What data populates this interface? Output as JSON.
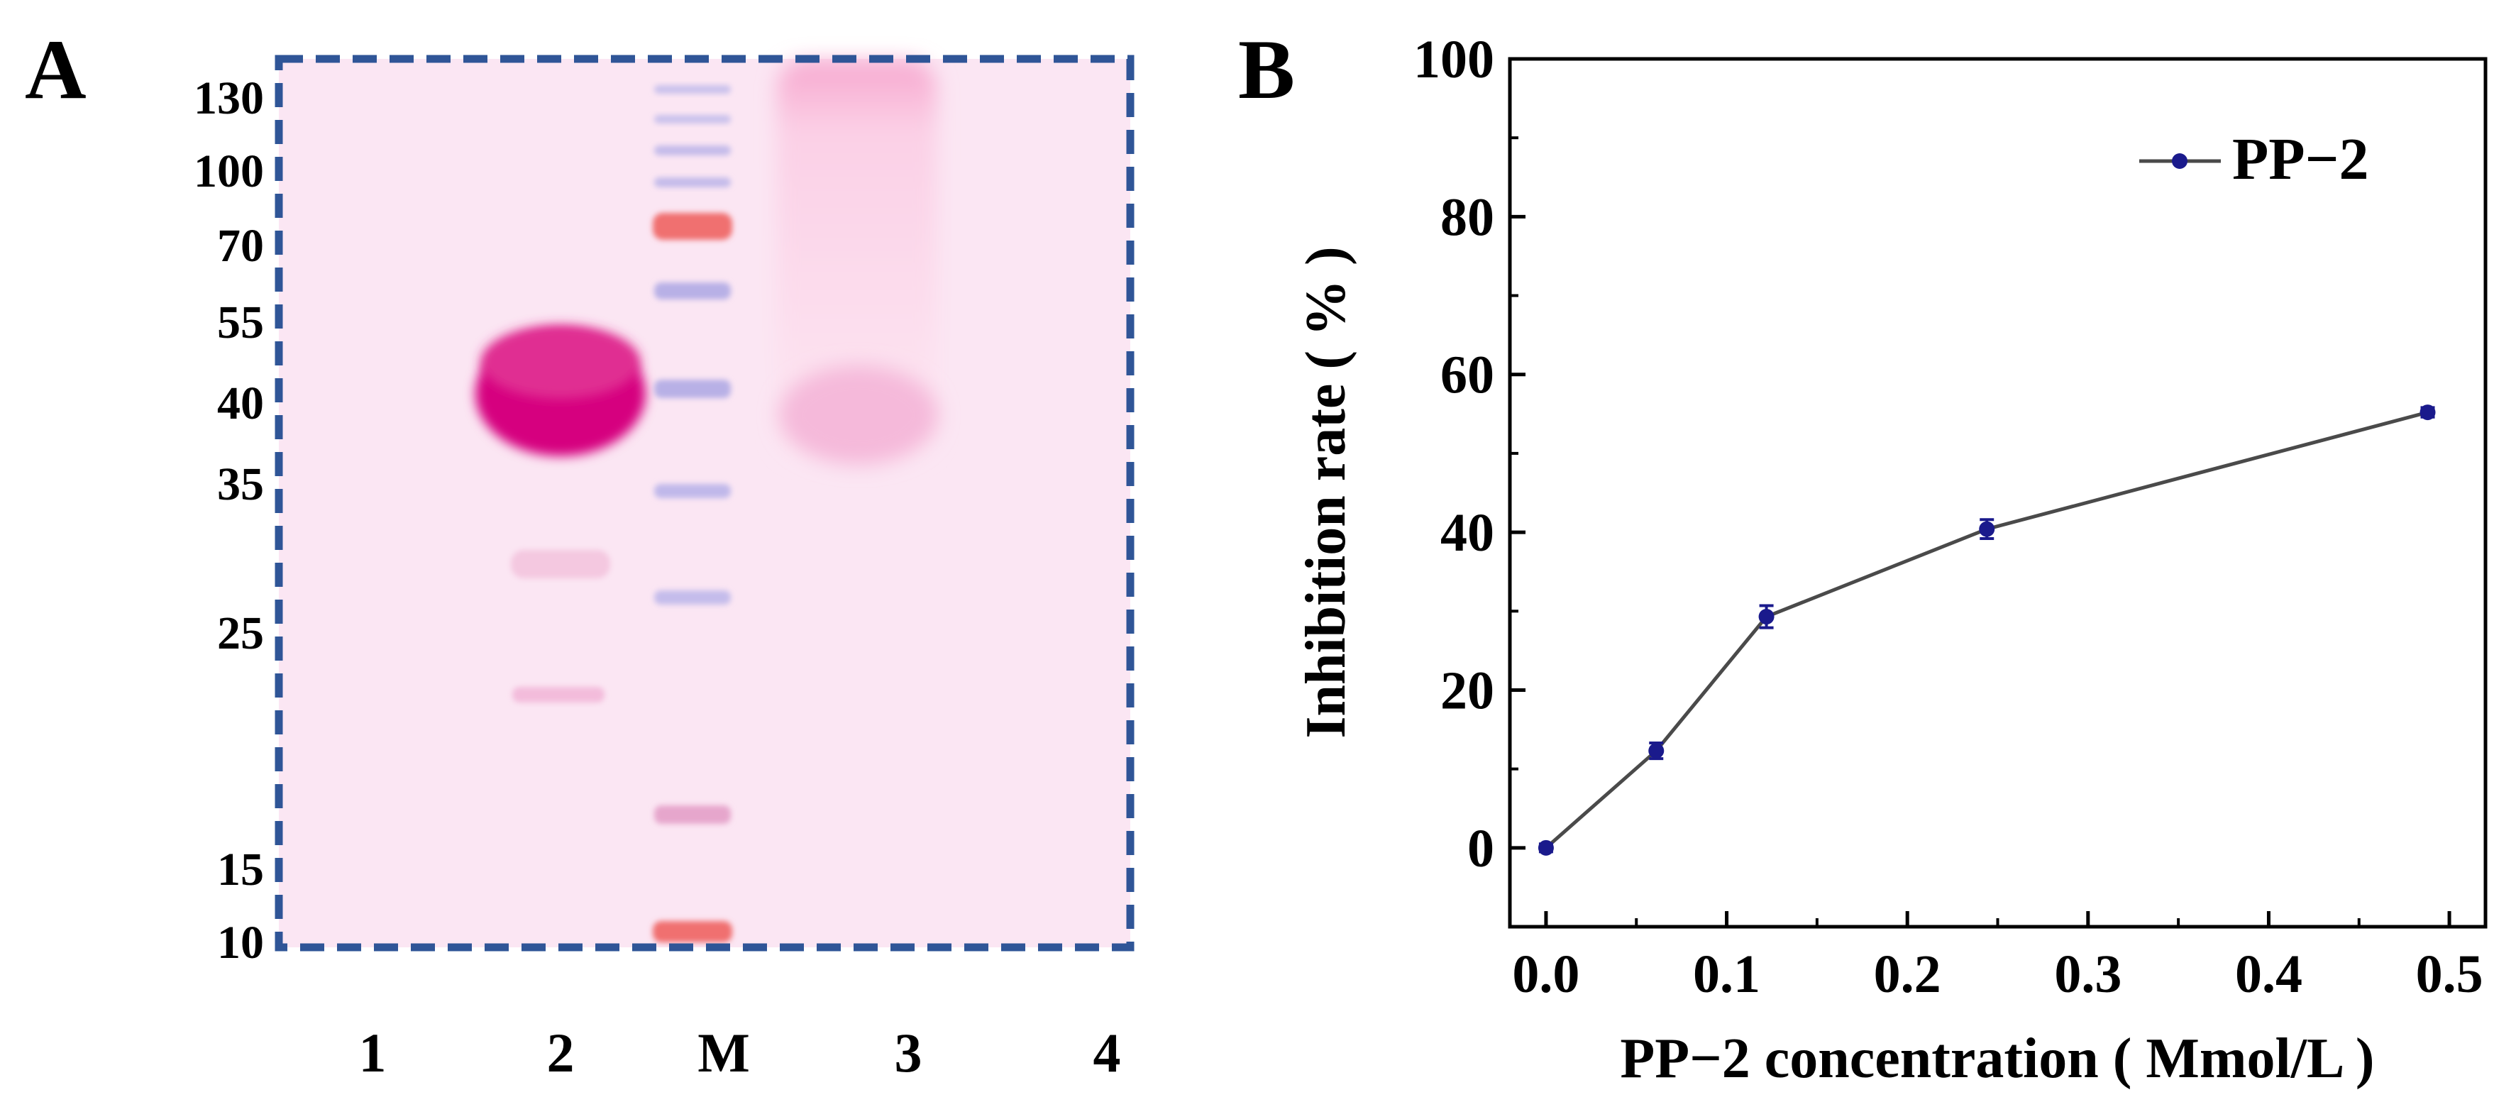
{
  "panel_a": {
    "letter": "A",
    "marker_kda": [
      "130",
      "100",
      "70",
      "55",
      "40",
      "35",
      "25",
      "15",
      "10"
    ],
    "lane_labels": [
      "1",
      "2",
      "M",
      "3",
      "4"
    ],
    "colors": {
      "gel_bg": "#fbe6f3",
      "frame": "#2f5597",
      "band_strong": "#d6007f",
      "marker_red": "#f07070",
      "marker_blue": "#b8b0e6"
    }
  },
  "panel_b": {
    "letter": "B",
    "chart_data": {
      "type": "line",
      "xlabel": "PP−2 concentration ( Mmol/L )",
      "ylabel": "Inhibition rate ( % )",
      "xlim": [
        -0.02,
        0.52
      ],
      "ylim": [
        -10,
        100
      ],
      "xticks": [
        "0.0",
        "0.1",
        "0.2",
        "0.3",
        "0.4",
        "0.5"
      ],
      "yticks": [
        "0",
        "20",
        "40",
        "60",
        "80",
        "100"
      ],
      "legend_position": "top-right",
      "grid": false,
      "series": [
        {
          "name": "PP−2",
          "color": "#1a1a8c",
          "line_color": "#4a4a4a",
          "x": [
            0.0,
            0.061,
            0.122,
            0.244,
            0.488
          ],
          "y": [
            0.0,
            12.3,
            29.3,
            40.4,
            55.2
          ],
          "yerr": [
            0.5,
            1.0,
            1.4,
            1.2,
            0.6
          ]
        }
      ]
    }
  }
}
